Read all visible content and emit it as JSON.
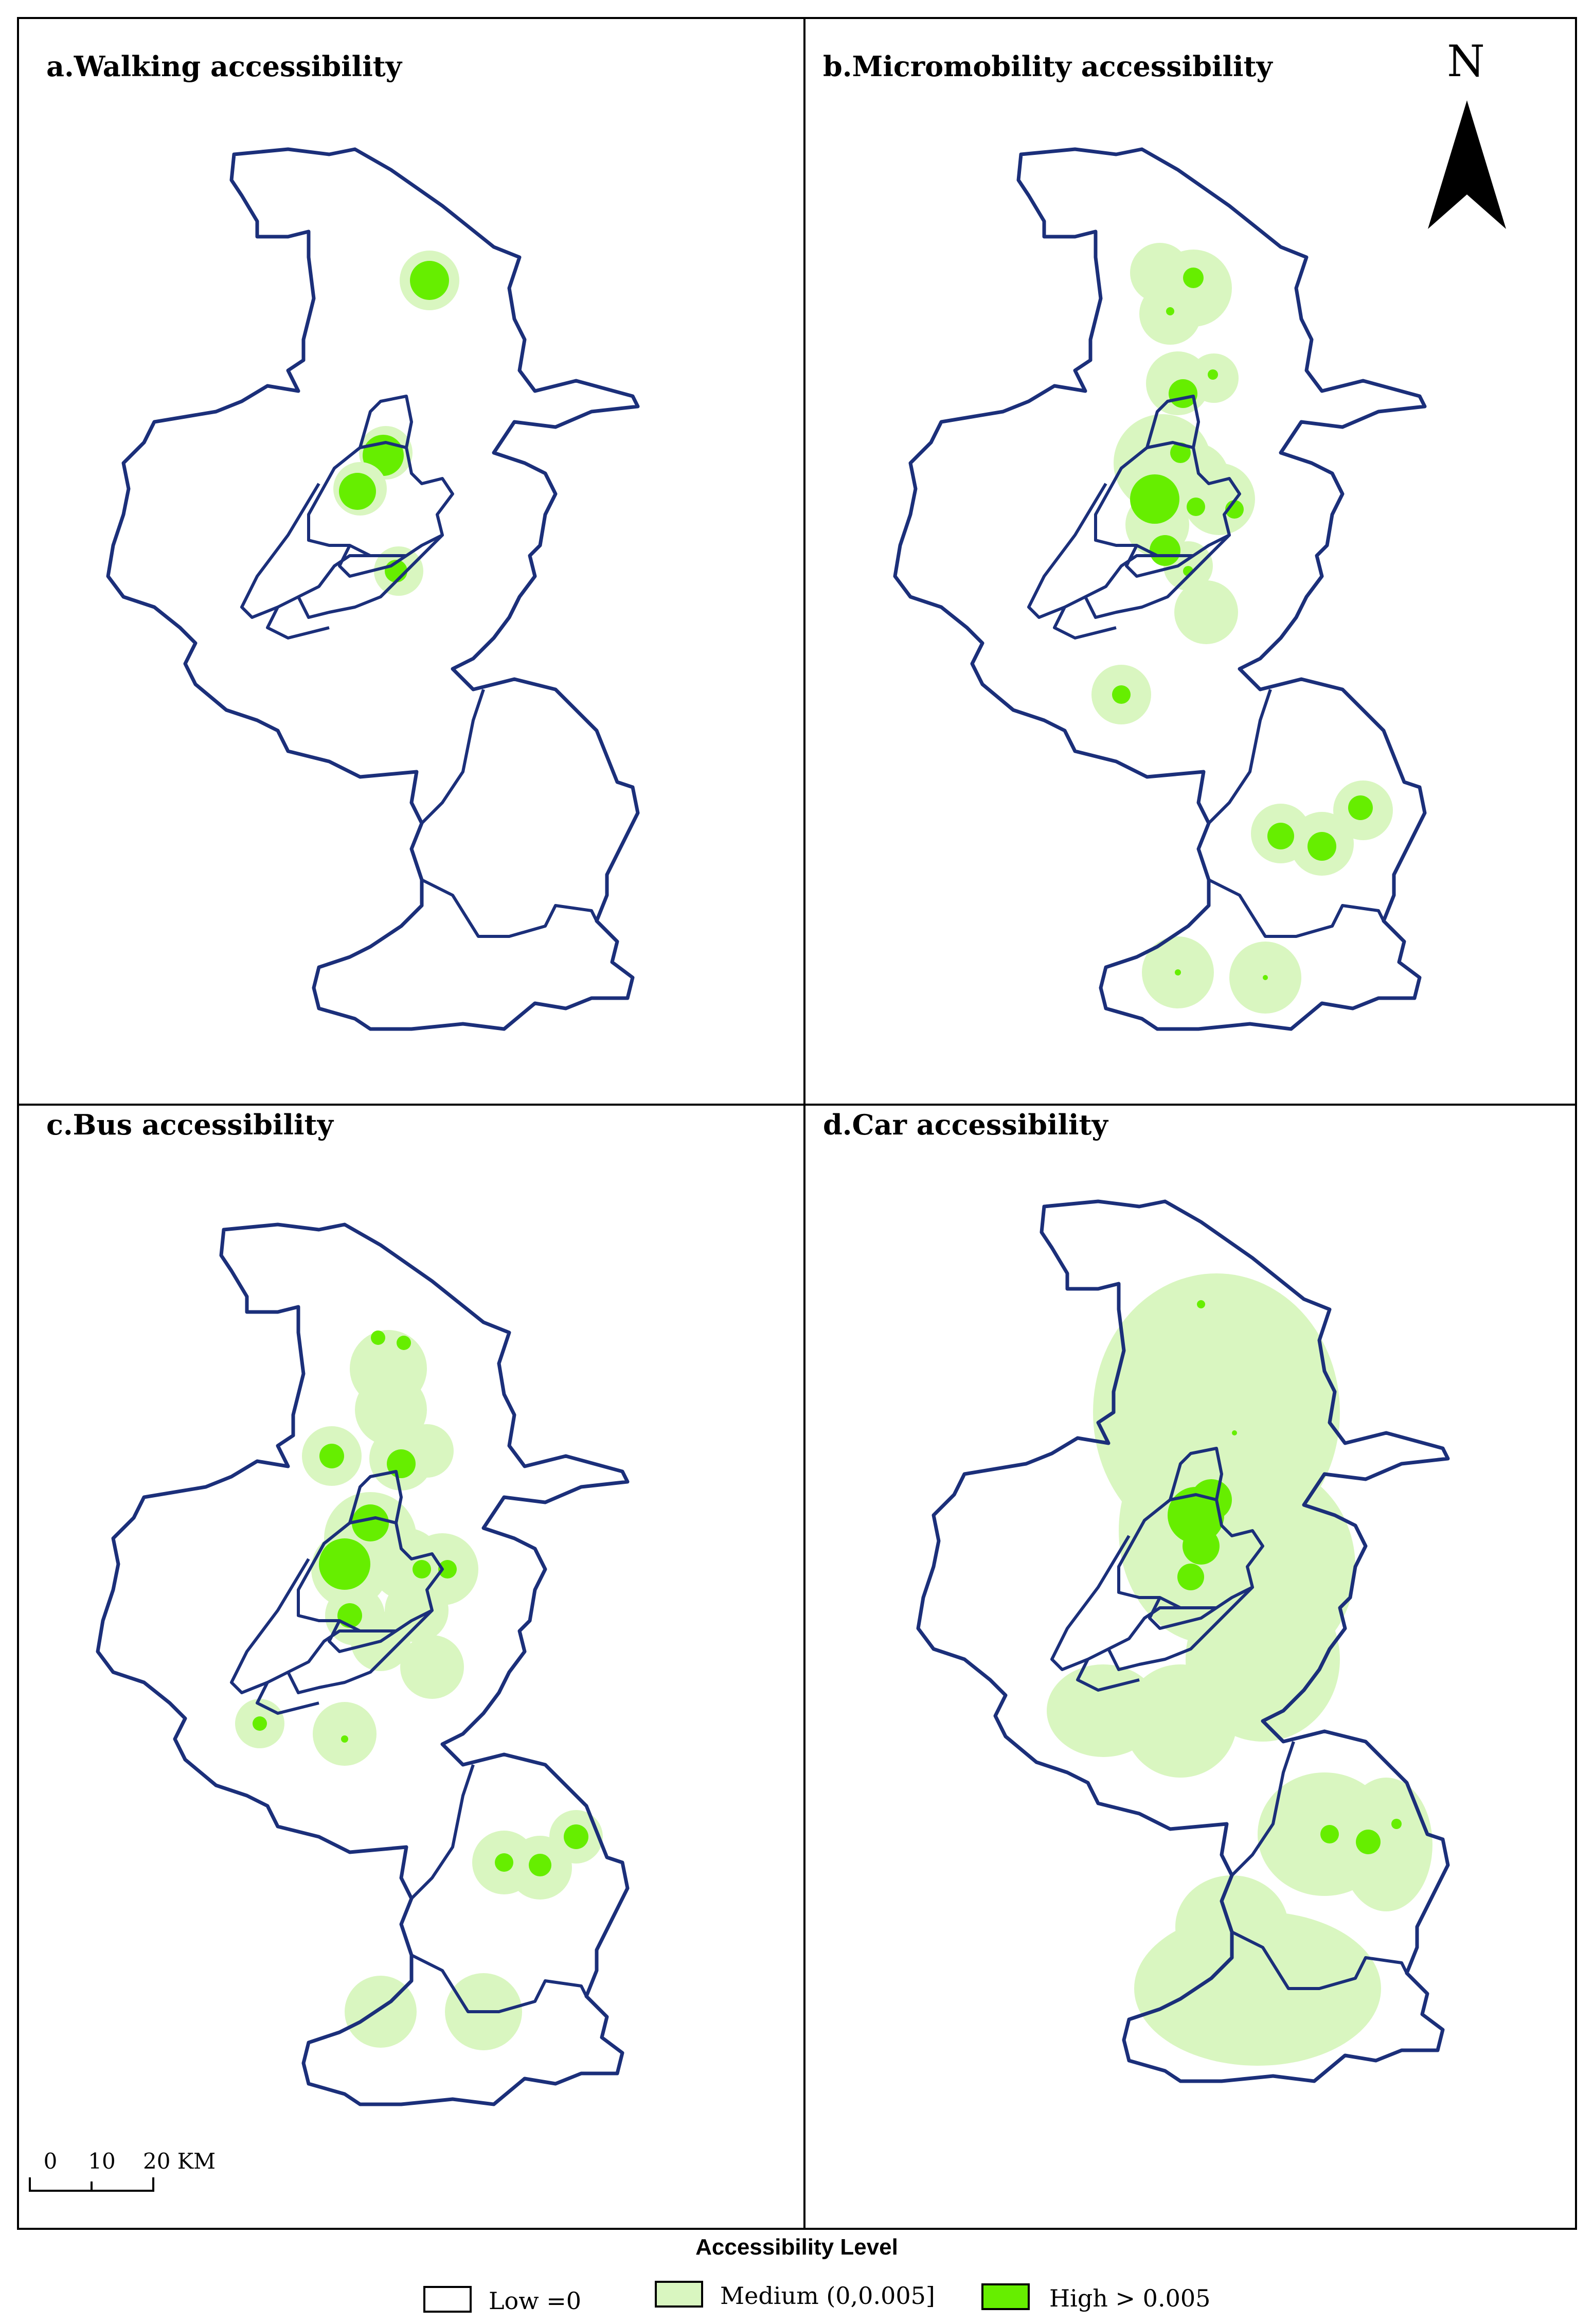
{
  "panels": [
    {
      "id": "a",
      "title": "a.Walking accessibility"
    },
    {
      "id": "b",
      "title": "b.Micromobility accessibility"
    },
    {
      "id": "c",
      "title": "c.Bus accessibility"
    },
    {
      "id": "d",
      "title": "d.Car accessibility"
    }
  ],
  "north_arrow": {
    "label": "N"
  },
  "scale_bar": {
    "tick_0": "0",
    "tick_10": "10",
    "tick_20": "20 KM"
  },
  "legend": {
    "title": "Accessibility Level",
    "items": [
      {
        "label": "Low =0",
        "color": "#ffffff"
      },
      {
        "label": "Medium (0,0.005]",
        "color": "#d9f6c0"
      },
      {
        "label": "High  > 0.005",
        "color": "#66ee00"
      }
    ]
  },
  "colors": {
    "boundary": "#1b2f7a",
    "medium": "#d9f6c0",
    "high": "#66ee00"
  }
}
